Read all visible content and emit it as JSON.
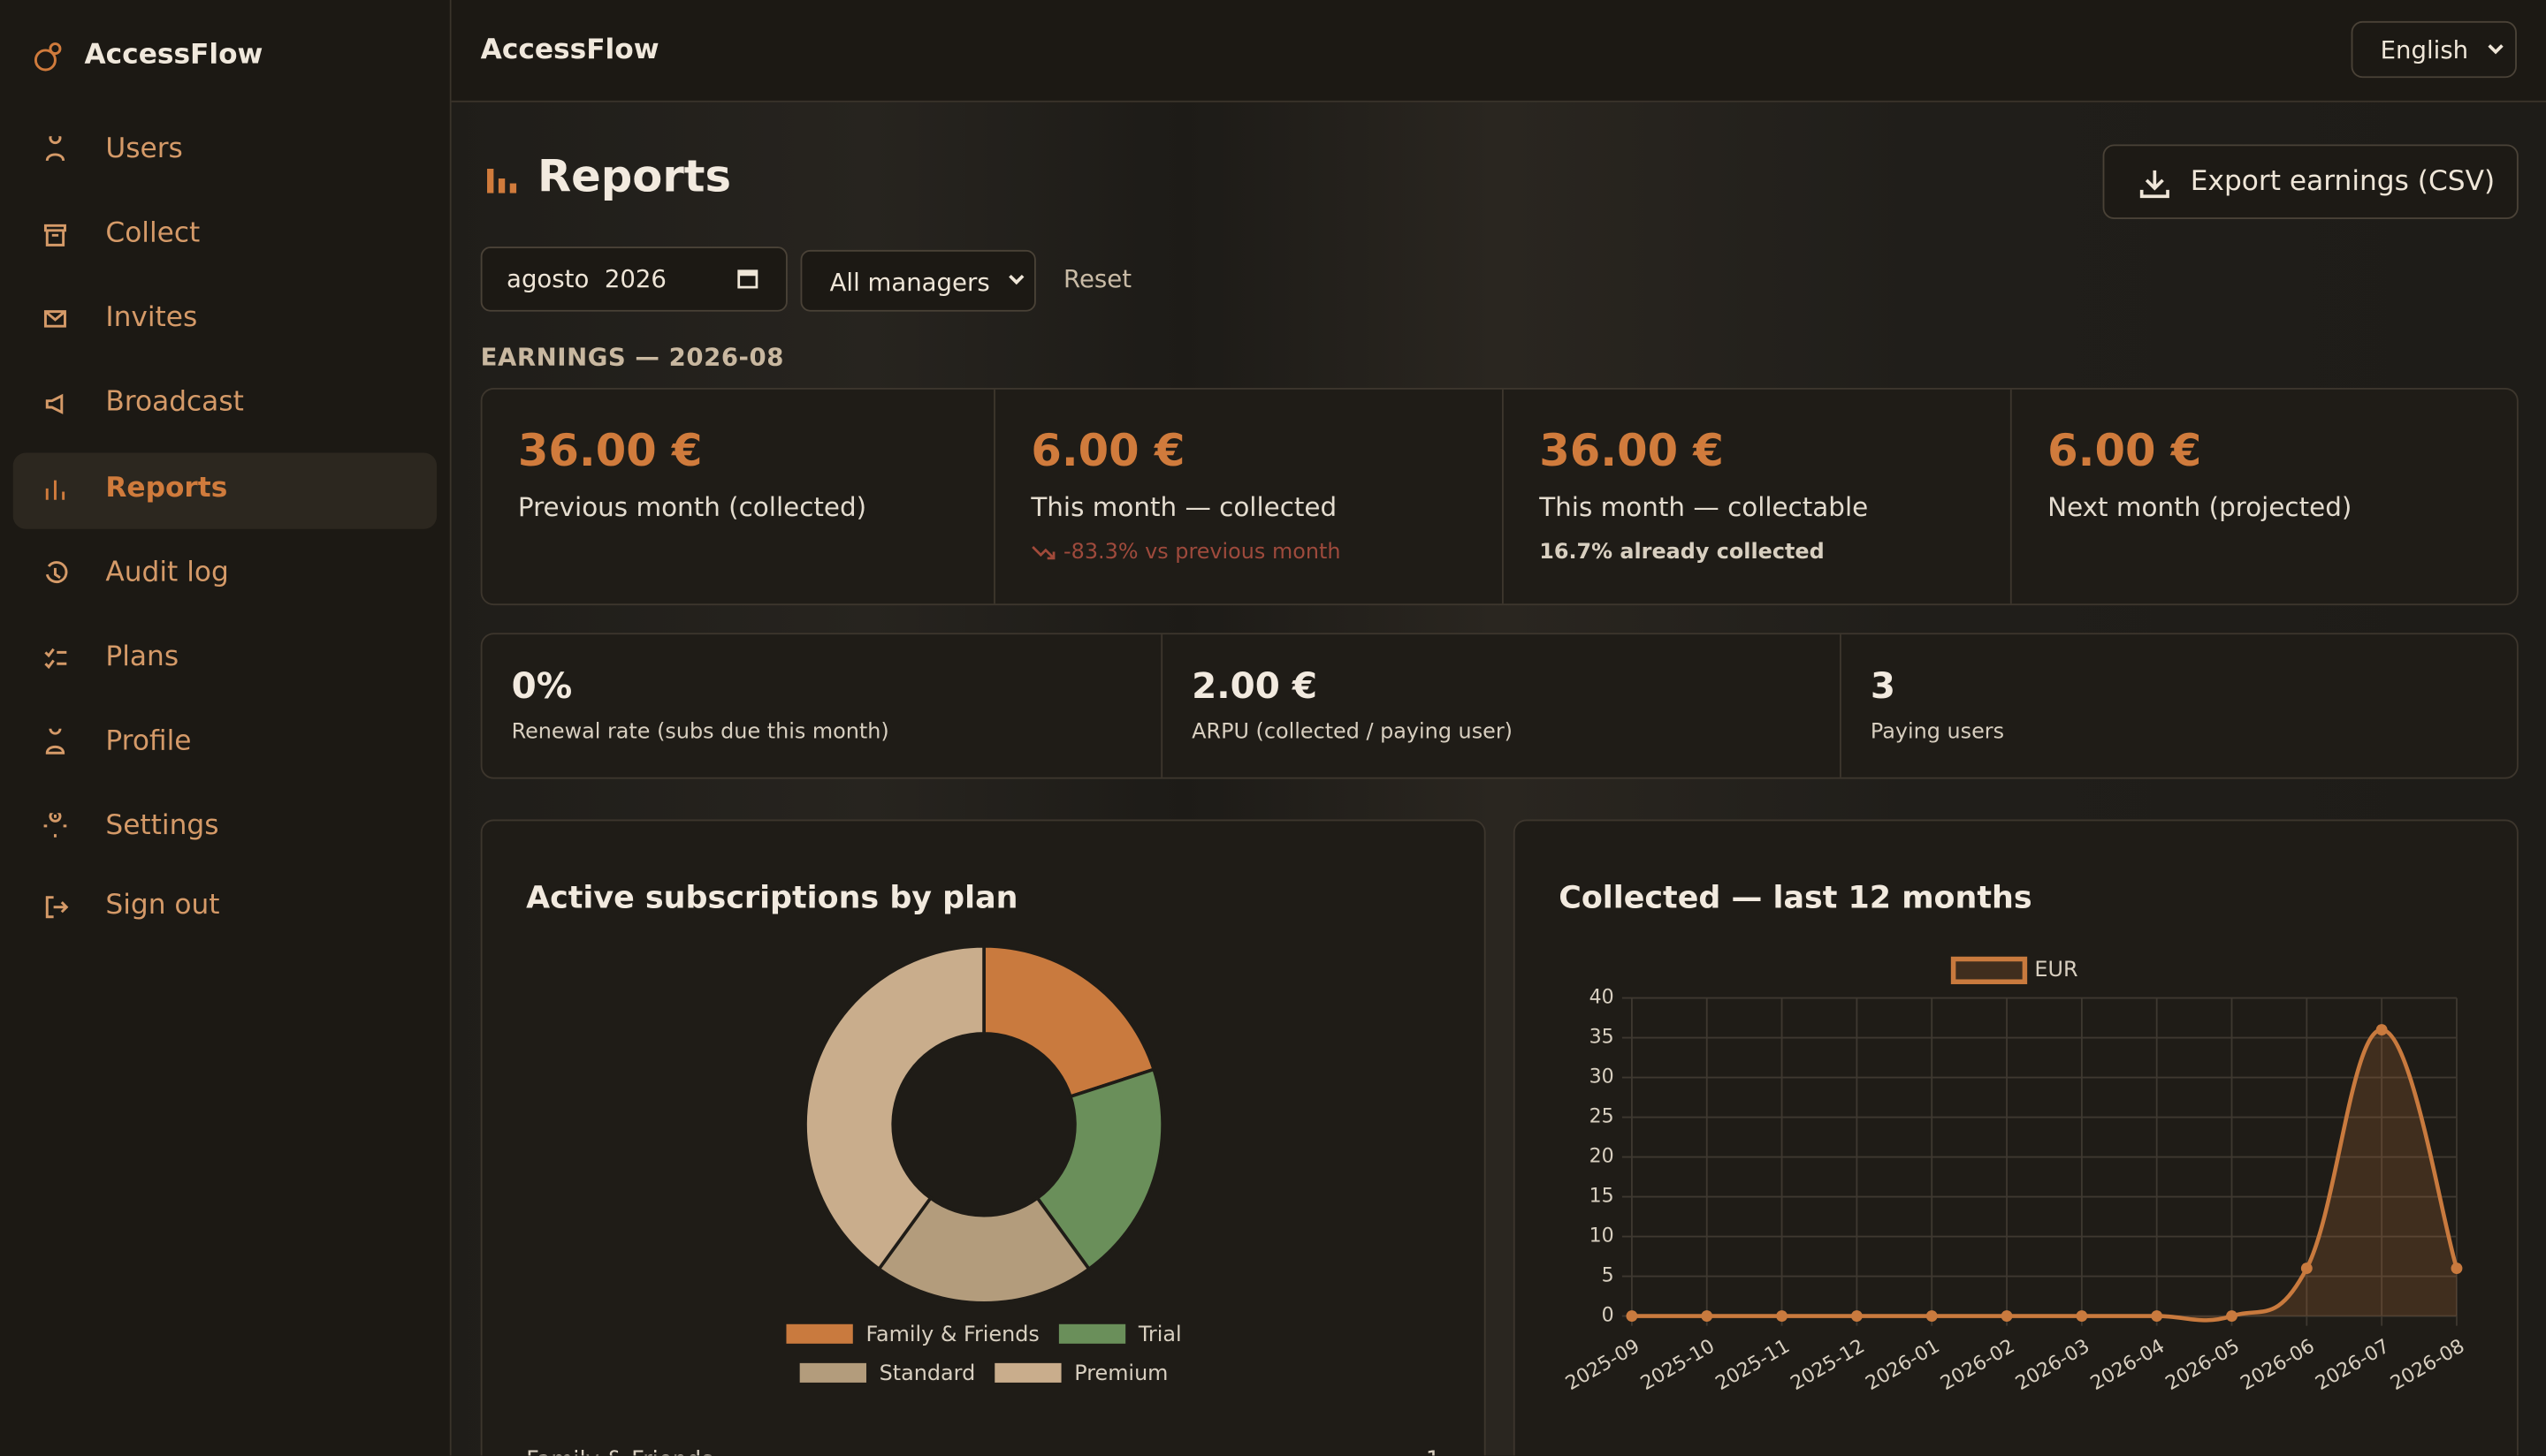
{
  "sidebar": {
    "brand": "AccessFlow",
    "nav": [
      "Users",
      "Collect",
      "Invites",
      "Broadcast",
      "Reports",
      "Audit log",
      "Plans",
      "Profile",
      "Settings",
      "Sign out"
    ]
  },
  "header": {
    "title": "AccessFlow",
    "language": "English"
  },
  "page": {
    "title": "Reports",
    "export": "Export earnings (CSV)",
    "month": "agosto  2026",
    "manager": "All managers",
    "reset": "Reset",
    "section": "EARNINGS — 2026-08"
  },
  "earnings": [
    {
      "value": "36.00 €",
      "label": "Previous month (collected)"
    },
    {
      "value": "6.00 €",
      "label": "This month — collected",
      "note": "-83.3% vs previous month"
    },
    {
      "value": "36.00 €",
      "label": "This month — collectable",
      "note": "16.7% already collected"
    },
    {
      "value": "6.00 €",
      "label": "Next month (projected)"
    }
  ],
  "kpis": [
    {
      "value": "0%",
      "label": "Renewal rate (subs due this month)"
    },
    {
      "value": "2.00 €",
      "label": "ARPU (collected / paying user)"
    },
    {
      "value": "3",
      "label": "Paying users"
    }
  ],
  "chart_data": [
    {
      "type": "doughnut",
      "title": "Active subscriptions by plan",
      "categories": [
        "Family & Friends",
        "Trial",
        "Standard",
        "Premium"
      ],
      "values": [
        1,
        1,
        1,
        2
      ],
      "colors": [
        "#c97a3e",
        "#6a8f5a",
        "#b39c7c",
        "#c9ad8c"
      ]
    },
    {
      "type": "line",
      "title": "Collected — last 12 months",
      "x": [
        "2025-09",
        "2025-10",
        "2025-11",
        "2025-12",
        "2026-01",
        "2026-02",
        "2026-03",
        "2026-04",
        "2026-05",
        "2026-06",
        "2026-07",
        "2026-08"
      ],
      "series": [
        {
          "name": "EUR",
          "color": "#c97a3e",
          "values": [
            0,
            0,
            0,
            0,
            0,
            0,
            0,
            0,
            0,
            6,
            36,
            6
          ]
        }
      ],
      "ylim": [
        0,
        40
      ],
      "yticks": [
        0,
        5,
        10,
        15,
        20,
        25,
        30,
        35,
        40
      ],
      "grid": true
    }
  ]
}
